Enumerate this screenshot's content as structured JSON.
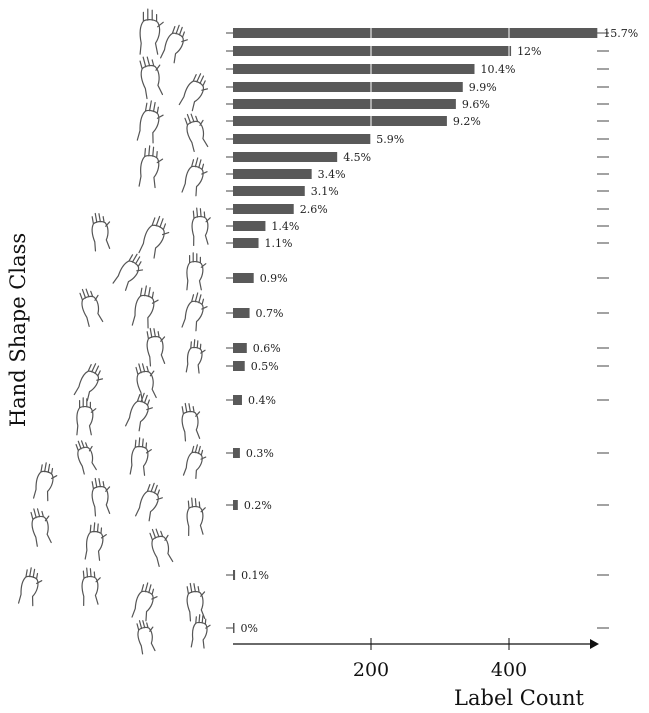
{
  "chart_data": {
    "type": "bar",
    "orientation": "horizontal",
    "title": "",
    "xlabel": "Label Count",
    "ylabel": "Hand Shape Class",
    "xticks": [
      200,
      400
    ],
    "xlim": [
      0,
      530
    ],
    "grid": "vertical-white-lines",
    "values": [
      528,
      403,
      350,
      333,
      323,
      310,
      199,
      151,
      114,
      104,
      88,
      47,
      37,
      30,
      24,
      20,
      17,
      13,
      10,
      7,
      3,
      1
    ],
    "labels": [
      "15.7%",
      "12%",
      "10.4%",
      "9.9%",
      "9.6%",
      "9.2%",
      "5.9%",
      "4.5%",
      "3.4%",
      "3.1%",
      "2.6%",
      "1.4%",
      "1.1%",
      "0.9%",
      "0.7%",
      "0.6%",
      "0.5%",
      "0.4%",
      "0.3%",
      "0.2%",
      "0.1%",
      "0%"
    ],
    "bar_color": "#595959",
    "categories_shown_as": "hand-shape-illustrations"
  }
}
